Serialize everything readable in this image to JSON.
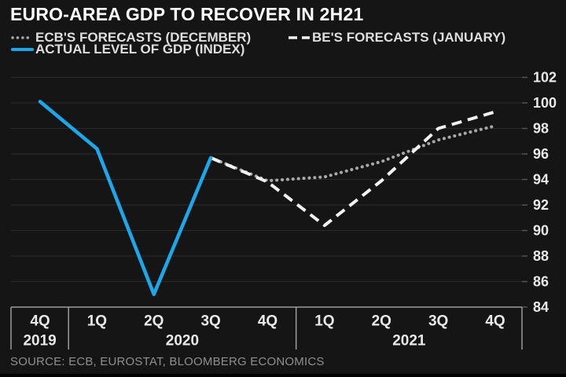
{
  "source_note": "SOURCE: ECB, EUROSTAT, BLOOMBERG ECONOMICS",
  "colors": {
    "background": "#151515",
    "gridline": "#2b2b2b",
    "axis": "#9c9c9c",
    "tick": "#555555",
    "title_text": "#ffffff",
    "legend_text": "#dedede",
    "axis_label_text": "#e9e9e9",
    "source_text": "#8f8f8f",
    "accent_blue": "#1ea7e8"
  },
  "chart_data": {
    "type": "line",
    "title": "EURO-AREA GDP TO RECOVER IN 2H21",
    "xlabel": "",
    "ylabel": "",
    "grid": true,
    "legend_position": "top-left",
    "ylim": [
      84,
      102.5
    ],
    "y_ticks": [
      102,
      100,
      98,
      96,
      94,
      92,
      90,
      88,
      86,
      84
    ],
    "x_categories": [
      "4Q 2019",
      "1Q 2020",
      "2Q 2020",
      "3Q 2020",
      "4Q 2020",
      "1Q 2021",
      "2Q 2021",
      "3Q 2021",
      "4Q 2021"
    ],
    "x_tick_labels": [
      "4Q",
      "1Q",
      "2Q",
      "3Q",
      "4Q",
      "1Q",
      "2Q",
      "3Q",
      "4Q"
    ],
    "year_groups": [
      {
        "label": "2019",
        "span": [
          0,
          0
        ]
      },
      {
        "label": "2020",
        "span": [
          1,
          4
        ]
      },
      {
        "label": "2021",
        "span": [
          5,
          8
        ]
      }
    ],
    "series": [
      {
        "name": "ECB'S FORECASTS (DECEMBER)",
        "style": "dotted",
        "color": "#a8a8a8",
        "start_index": 3,
        "values": [
          95.7,
          93.9,
          94.2,
          95.4,
          97.1,
          98.2
        ]
      },
      {
        "name": "BE'S FORECASTS (JANUARY)",
        "style": "dashed",
        "color": "#f2f2f2",
        "start_index": 3,
        "values": [
          95.7,
          93.8,
          90.4,
          93.9,
          98.0,
          99.3
        ]
      },
      {
        "name": "ACTUAL LEVEL OF GDP (INDEX)",
        "style": "solid",
        "color": "#1ea7e8",
        "start_index": 0,
        "values": [
          100.1,
          96.4,
          85.0,
          95.7
        ]
      }
    ]
  }
}
